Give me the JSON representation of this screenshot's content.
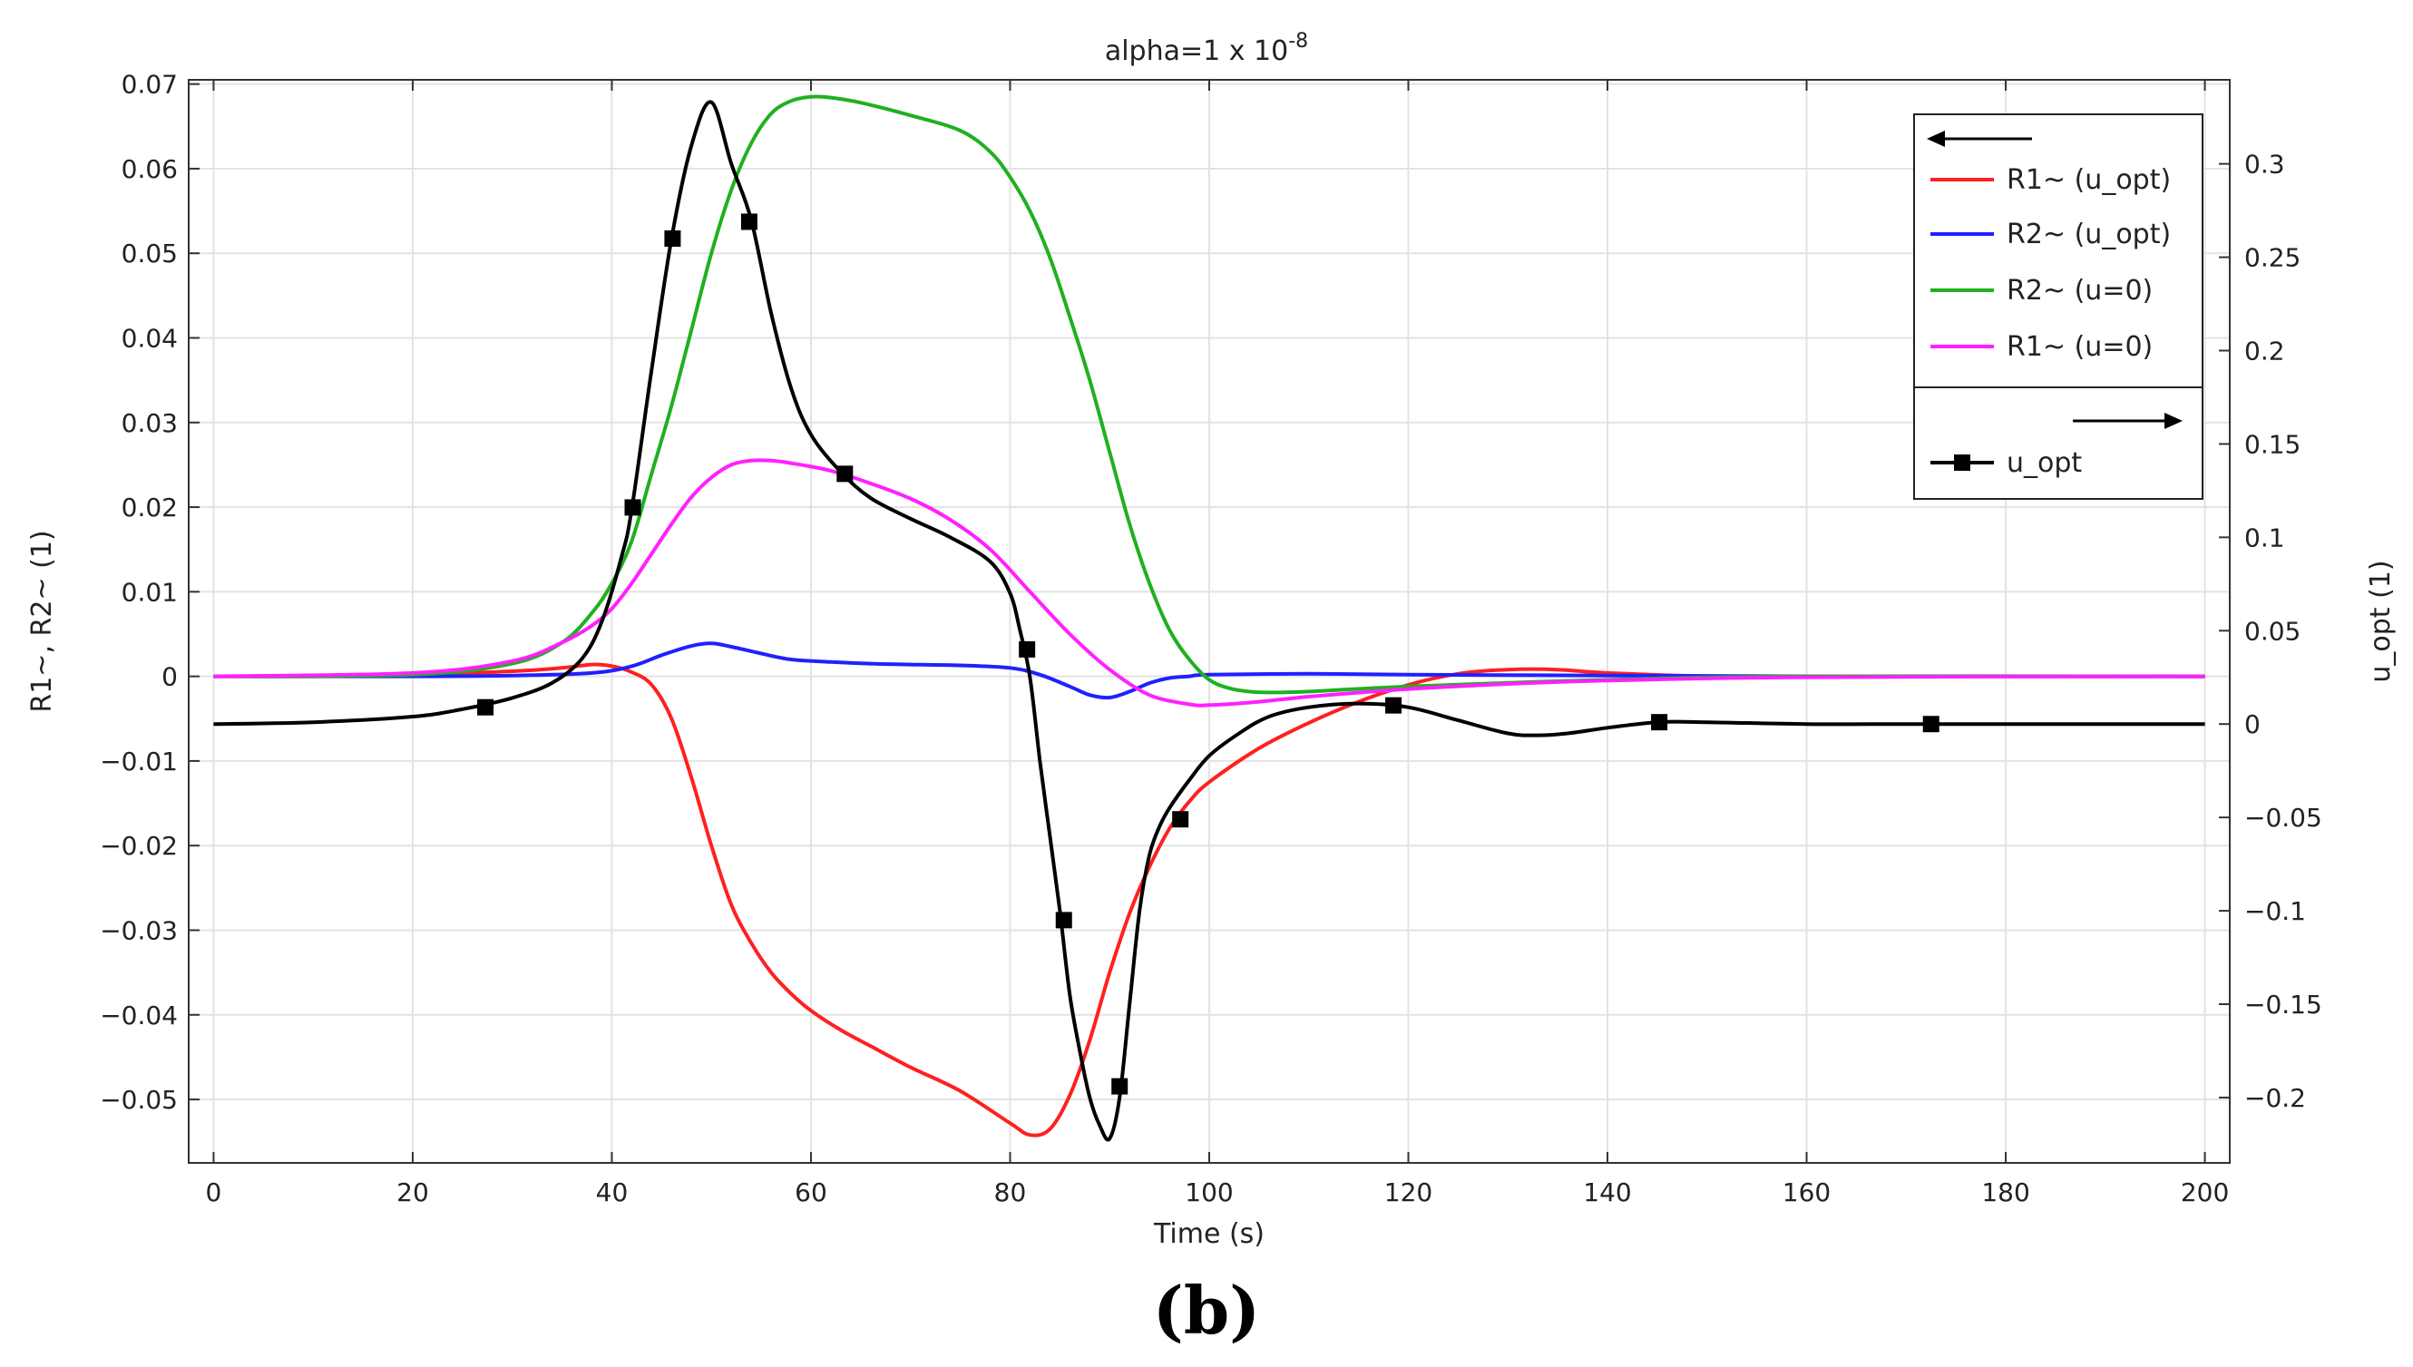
{
  "figure": {
    "panel_label": "(b)"
  },
  "chart_data": {
    "type": "line",
    "title_prefix": "alpha=1 x 10",
    "title_exponent": "-8",
    "xlabel": "Time (s)",
    "ylabel_left": "R1~, R2~ (1)",
    "ylabel_right": "u_opt (1)",
    "xlim": [
      -2.5,
      202.5
    ],
    "ylim_left": [
      -0.0575,
      0.0705
    ],
    "ylim_right": [
      -0.235,
      0.345
    ],
    "xticks": [
      0,
      20,
      40,
      60,
      80,
      100,
      120,
      140,
      160,
      180,
      200
    ],
    "xtick_labels": [
      "0",
      "20",
      "40",
      "60",
      "80",
      "100",
      "120",
      "140",
      "160",
      "180",
      "200"
    ],
    "yticks_left": [
      -0.05,
      -0.04,
      -0.03,
      -0.02,
      -0.01,
      0,
      0.01,
      0.02,
      0.03,
      0.04,
      0.05,
      0.06,
      0.07
    ],
    "ytick_labels_left": [
      "−0.05",
      "−0.04",
      "−0.03",
      "−0.02",
      "−0.01",
      "0",
      "0.01",
      "0.02",
      "0.03",
      "0.04",
      "0.05",
      "0.06",
      "0.07"
    ],
    "yticks_right": [
      -0.2,
      -0.15,
      -0.1,
      -0.05,
      0,
      0.05,
      0.1,
      0.15,
      0.2,
      0.25,
      0.3
    ],
    "ytick_labels_right": [
      "−0.2",
      "−0.15",
      "−0.1",
      "−0.05",
      "0",
      "0.05",
      "0.1",
      "0.15",
      "0.2",
      "0.25",
      "0.3"
    ],
    "grid": true,
    "legend_position": "top-right",
    "series": [
      {
        "name": "R1~ (u_opt)",
        "axis": "left",
        "color": "#ff2020",
        "x": [
          0,
          10,
          20,
          30,
          35,
          38,
          40,
          42,
          44,
          46,
          48,
          50,
          52,
          54,
          56,
          58,
          60,
          63,
          66,
          70,
          75,
          80,
          82,
          84,
          86,
          88,
          90,
          92,
          94,
          96,
          98,
          100,
          105,
          110,
          115,
          120,
          125,
          130,
          135,
          140,
          150,
          160,
          200
        ],
        "y": [
          0,
          0,
          0.0002,
          0.0006,
          0.001,
          0.0014,
          0.0012,
          0.0005,
          -0.001,
          -0.005,
          -0.012,
          -0.02,
          -0.027,
          -0.0315,
          -0.035,
          -0.0375,
          -0.0395,
          -0.0418,
          -0.0437,
          -0.0462,
          -0.049,
          -0.0528,
          -0.0542,
          -0.0535,
          -0.0495,
          -0.043,
          -0.035,
          -0.028,
          -0.0225,
          -0.018,
          -0.0148,
          -0.0125,
          -0.0085,
          -0.0055,
          -0.003,
          -0.001,
          0.0003,
          0.0008,
          0.0008,
          0.0004,
          0,
          0,
          0
        ]
      },
      {
        "name": "R2~ (u_opt)",
        "axis": "left",
        "color": "#2020ff",
        "x": [
          0,
          20,
          30,
          38,
          42,
          45,
          48,
          50,
          52,
          55,
          58,
          62,
          66,
          70,
          75,
          80,
          83,
          86,
          88,
          90,
          92,
          94,
          96,
          98,
          100,
          110,
          120,
          140,
          160,
          200
        ],
        "y": [
          0,
          0,
          0.0001,
          0.0004,
          0.0012,
          0.0025,
          0.0036,
          0.0039,
          0.0035,
          0.0027,
          0.002,
          0.0017,
          0.0015,
          0.0014,
          0.0013,
          0.001,
          0.0002,
          -0.0012,
          -0.0022,
          -0.0025,
          -0.0018,
          -0.0008,
          -0.0002,
          0,
          0.0002,
          0.0003,
          0.0002,
          0.0001,
          0,
          0
        ]
      },
      {
        "name": "R2~ (u=0)",
        "axis": "left",
        "color": "#20b020",
        "x": [
          0,
          20,
          30,
          35,
          38,
          40,
          42,
          44,
          46,
          48,
          50,
          52,
          54,
          56,
          58,
          60,
          62,
          65,
          70,
          75,
          78,
          80,
          82,
          84,
          86,
          88,
          90,
          92,
          94,
          96,
          98,
          100,
          102,
          104,
          106,
          110,
          120,
          140,
          160,
          200
        ],
        "y": [
          0,
          0.0002,
          0.0015,
          0.004,
          0.0075,
          0.011,
          0.016,
          0.024,
          0.032,
          0.041,
          0.05,
          0.0575,
          0.063,
          0.0665,
          0.068,
          0.0685,
          0.0684,
          0.0678,
          0.0663,
          0.0645,
          0.062,
          0.059,
          0.055,
          0.0495,
          0.0425,
          0.035,
          0.0265,
          0.018,
          0.011,
          0.0055,
          0.002,
          -0.0004,
          -0.0014,
          -0.0018,
          -0.0019,
          -0.0018,
          -0.0012,
          -0.0004,
          0,
          0
        ]
      },
      {
        "name": "R1~ (u=0)",
        "axis": "left",
        "color": "#ff20ff",
        "x": [
          0,
          20,
          30,
          35,
          38,
          40,
          42,
          44,
          46,
          48,
          50,
          52,
          54,
          56,
          58,
          62,
          66,
          70,
          74,
          78,
          82,
          86,
          90,
          94,
          98,
          100,
          105,
          110,
          120,
          130,
          140,
          160,
          200
        ],
        "y": [
          0,
          0.0004,
          0.0018,
          0.004,
          0.006,
          0.008,
          0.011,
          0.0145,
          0.018,
          0.0212,
          0.0235,
          0.025,
          0.0255,
          0.0255,
          0.0252,
          0.0243,
          0.0228,
          0.021,
          0.0185,
          0.015,
          0.01,
          0.005,
          0.0008,
          -0.0022,
          -0.0033,
          -0.0034,
          -0.003,
          -0.0024,
          -0.0015,
          -0.0009,
          -0.0005,
          -0.0001,
          0
        ]
      },
      {
        "name": "u_opt",
        "axis": "right",
        "color": "#000000",
        "marker": "square",
        "x": [
          0,
          10,
          20,
          25,
          30,
          34,
          37,
          39,
          41,
          42,
          44,
          46,
          48,
          50,
          52,
          54,
          56,
          58,
          60,
          63,
          66,
          70,
          74,
          78,
          80,
          81,
          82,
          83,
          84,
          85,
          86,
          87,
          88,
          89,
          90,
          91,
          92,
          93,
          94,
          95,
          96,
          98,
          100,
          103,
          106,
          110,
          115,
          120,
          125,
          130,
          133,
          136,
          140,
          145,
          150,
          160,
          170,
          180,
          200
        ],
        "y": [
          0,
          0.001,
          0.004,
          0.008,
          0.014,
          0.022,
          0.035,
          0.055,
          0.09,
          0.115,
          0.19,
          0.26,
          0.31,
          0.333,
          0.3,
          0.27,
          0.22,
          0.18,
          0.155,
          0.135,
          0.121,
          0.11,
          0.1,
          0.087,
          0.07,
          0.05,
          0.025,
          -0.02,
          -0.06,
          -0.1,
          -0.145,
          -0.175,
          -0.2,
          -0.215,
          -0.222,
          -0.2,
          -0.15,
          -0.1,
          -0.07,
          -0.055,
          -0.045,
          -0.03,
          -0.017,
          -0.005,
          0.004,
          0.009,
          0.011,
          0.009,
          0.002,
          -0.005,
          -0.006,
          -0.005,
          -0.002,
          0.001,
          0.001,
          0,
          0,
          0,
          0
        ],
        "markers_x": [
          27.3,
          42.1,
          46.1,
          53.8,
          63.4,
          81.7,
          85.4,
          91.0,
          97.1,
          118.5,
          145.2,
          172.5
        ],
        "markers_y": [
          0.009,
          0.116,
          0.26,
          0.269,
          0.134,
          0.04,
          -0.105,
          -0.194,
          -0.051,
          0.01,
          0.001,
          0.0
        ]
      }
    ]
  }
}
